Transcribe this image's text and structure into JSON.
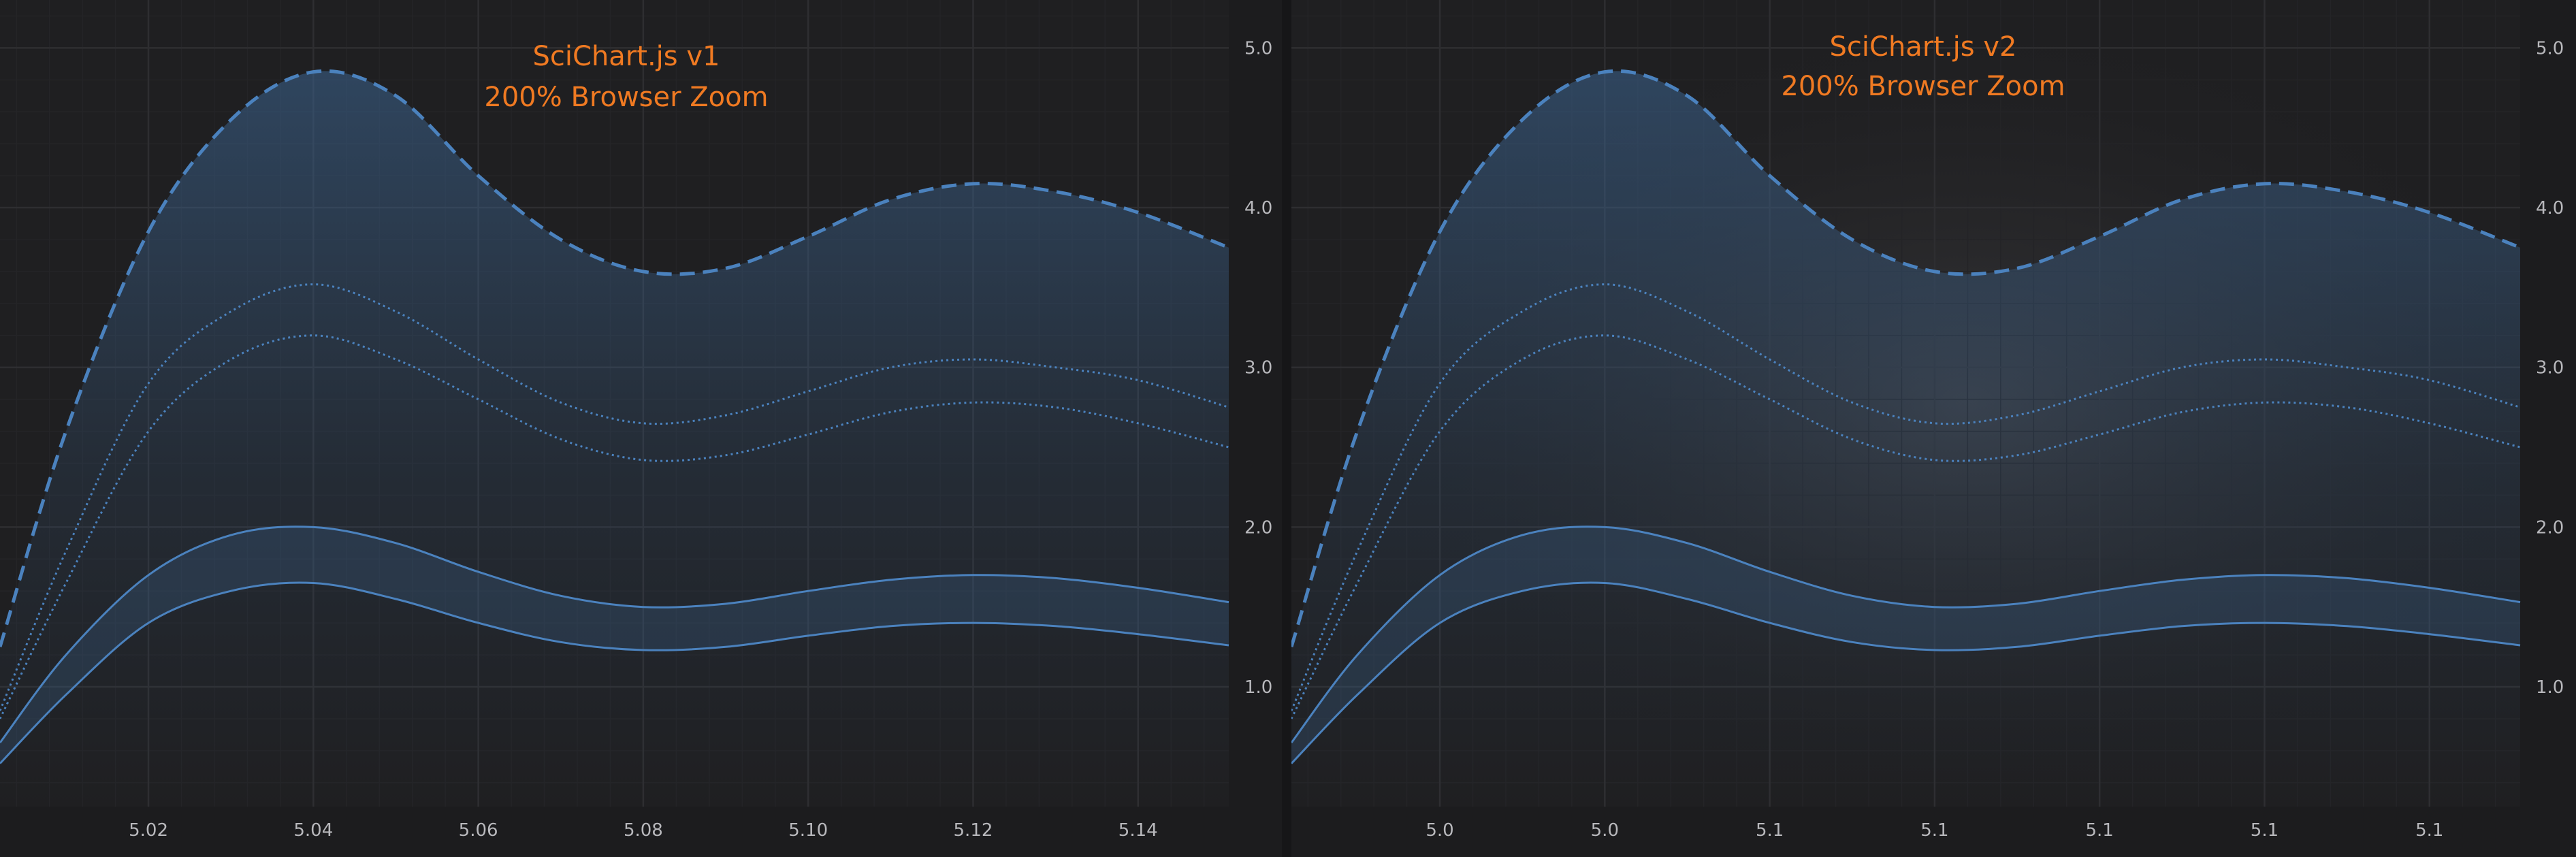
{
  "theme": {
    "background": "#1c1c1e",
    "plot_background": "#1f1f21",
    "gridline_major": "#2e2e31",
    "gridline_minor": "#242427",
    "axis_text": "#b8b8bc",
    "title_color": "#f07a22",
    "line_color": "#4b82be",
    "fill_color": "#3c6490"
  },
  "chart_data": [
    {
      "type": "area",
      "title_lines": [
        "SciChart.js v1",
        "200% Browser Zoom"
      ],
      "x_tick_labels": [
        "5.02",
        "5.04",
        "5.06",
        "5.08",
        "5.10",
        "5.12",
        "5.14"
      ],
      "y_tick_labels": [
        "1.0",
        "2.0",
        "3.0",
        "4.0",
        "5.0"
      ],
      "xlim": [
        5.002,
        5.151
      ],
      "ylim": [
        0.25,
        5.3
      ],
      "y_axis_position": "right",
      "grid": true,
      "x_ticks": [
        5.02,
        5.04,
        5.06,
        5.08,
        5.1,
        5.12,
        5.14
      ],
      "y_ticks": [
        1,
        2,
        3,
        4,
        5
      ],
      "series": [
        {
          "style": "dashed",
          "fill_to_zero": true,
          "x": [
            5.002,
            5.01,
            5.02,
            5.03,
            5.04,
            5.05,
            5.06,
            5.07,
            5.08,
            5.09,
            5.1,
            5.11,
            5.12,
            5.13,
            5.14,
            5.151
          ],
          "y": [
            1.25,
            2.6,
            3.85,
            4.55,
            4.85,
            4.7,
            4.2,
            3.8,
            3.6,
            3.62,
            3.82,
            4.05,
            4.15,
            4.1,
            3.97,
            3.75
          ]
        },
        {
          "style": "dotted",
          "x": [
            5.002,
            5.01,
            5.02,
            5.03,
            5.04,
            5.05,
            5.06,
            5.07,
            5.08,
            5.09,
            5.1,
            5.11,
            5.12,
            5.13,
            5.14,
            5.151
          ],
          "y": [
            0.85,
            1.85,
            2.9,
            3.35,
            3.52,
            3.35,
            3.05,
            2.78,
            2.65,
            2.7,
            2.85,
            3.0,
            3.05,
            3.0,
            2.92,
            2.75
          ]
        },
        {
          "style": "dotted",
          "x": [
            5.002,
            5.01,
            5.02,
            5.03,
            5.04,
            5.05,
            5.06,
            5.07,
            5.08,
            5.09,
            5.1,
            5.11,
            5.12,
            5.13,
            5.14,
            5.151
          ],
          "y": [
            0.8,
            1.65,
            2.6,
            3.05,
            3.2,
            3.05,
            2.8,
            2.55,
            2.42,
            2.45,
            2.58,
            2.72,
            2.78,
            2.75,
            2.65,
            2.5
          ]
        },
        {
          "style": "solid",
          "band_with_next": true,
          "x": [
            5.002,
            5.01,
            5.02,
            5.03,
            5.04,
            5.05,
            5.06,
            5.07,
            5.08,
            5.09,
            5.1,
            5.11,
            5.12,
            5.13,
            5.14,
            5.151
          ],
          "y": [
            0.65,
            1.2,
            1.7,
            1.95,
            2.0,
            1.9,
            1.72,
            1.57,
            1.5,
            1.52,
            1.6,
            1.67,
            1.7,
            1.68,
            1.62,
            1.53
          ]
        },
        {
          "style": "solid",
          "x": [
            5.002,
            5.01,
            5.02,
            5.03,
            5.04,
            5.05,
            5.06,
            5.07,
            5.08,
            5.09,
            5.1,
            5.11,
            5.12,
            5.13,
            5.14,
            5.151
          ],
          "y": [
            0.52,
            0.95,
            1.4,
            1.6,
            1.65,
            1.55,
            1.4,
            1.28,
            1.23,
            1.25,
            1.32,
            1.38,
            1.4,
            1.38,
            1.33,
            1.26
          ]
        }
      ]
    },
    {
      "type": "area",
      "title_lines": [
        "SciChart.js v2",
        "200% Browser Zoom"
      ],
      "x_tick_labels": [
        "5.0",
        "5.0",
        "5.1",
        "5.1",
        "5.1",
        "5.1",
        "5.1"
      ],
      "y_tick_labels": [
        "1.0",
        "2.0",
        "3.0",
        "4.0",
        "5.0"
      ],
      "xlim": [
        5.002,
        5.151
      ],
      "ylim": [
        0.25,
        5.3
      ],
      "y_axis_position": "right",
      "grid": true,
      "x_ticks": [
        5.02,
        5.04,
        5.06,
        5.08,
        5.1,
        5.12,
        5.14
      ],
      "y_ticks": [
        1,
        2,
        3,
        4,
        5
      ],
      "series": [
        {
          "style": "dashed",
          "fill_to_zero": true,
          "x": [
            5.002,
            5.01,
            5.02,
            5.03,
            5.04,
            5.05,
            5.06,
            5.07,
            5.08,
            5.09,
            5.1,
            5.11,
            5.12,
            5.13,
            5.14,
            5.151
          ],
          "y": [
            1.25,
            2.6,
            3.85,
            4.55,
            4.85,
            4.7,
            4.2,
            3.8,
            3.6,
            3.62,
            3.82,
            4.05,
            4.15,
            4.1,
            3.97,
            3.75
          ]
        },
        {
          "style": "dotted",
          "x": [
            5.002,
            5.01,
            5.02,
            5.03,
            5.04,
            5.05,
            5.06,
            5.07,
            5.08,
            5.09,
            5.1,
            5.11,
            5.12,
            5.13,
            5.14,
            5.151
          ],
          "y": [
            0.85,
            1.85,
            2.9,
            3.35,
            3.52,
            3.35,
            3.05,
            2.78,
            2.65,
            2.7,
            2.85,
            3.0,
            3.05,
            3.0,
            2.92,
            2.75
          ]
        },
        {
          "style": "dotted",
          "x": [
            5.002,
            5.01,
            5.02,
            5.03,
            5.04,
            5.05,
            5.06,
            5.07,
            5.08,
            5.09,
            5.1,
            5.11,
            5.12,
            5.13,
            5.14,
            5.151
          ],
          "y": [
            0.8,
            1.65,
            2.6,
            3.05,
            3.2,
            3.05,
            2.8,
            2.55,
            2.42,
            2.45,
            2.58,
            2.72,
            2.78,
            2.75,
            2.65,
            2.5
          ]
        },
        {
          "style": "solid",
          "band_with_next": true,
          "x": [
            5.002,
            5.01,
            5.02,
            5.03,
            5.04,
            5.05,
            5.06,
            5.07,
            5.08,
            5.09,
            5.1,
            5.11,
            5.12,
            5.13,
            5.14,
            5.151
          ],
          "y": [
            0.65,
            1.2,
            1.7,
            1.95,
            2.0,
            1.9,
            1.72,
            1.57,
            1.5,
            1.52,
            1.6,
            1.67,
            1.7,
            1.68,
            1.62,
            1.53
          ]
        },
        {
          "style": "solid",
          "x": [
            5.002,
            5.01,
            5.02,
            5.03,
            5.04,
            5.05,
            5.06,
            5.07,
            5.08,
            5.09,
            5.1,
            5.11,
            5.12,
            5.13,
            5.14,
            5.151
          ],
          "y": [
            0.52,
            0.95,
            1.4,
            1.6,
            1.65,
            1.55,
            1.4,
            1.28,
            1.23,
            1.25,
            1.32,
            1.38,
            1.4,
            1.38,
            1.33,
            1.26
          ]
        }
      ]
    }
  ]
}
